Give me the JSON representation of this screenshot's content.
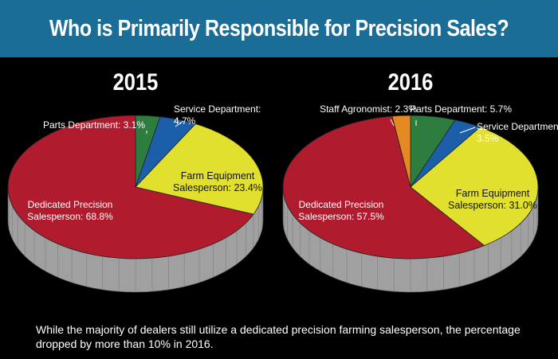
{
  "title": "Who is Primarily Responsible for Precision Sales?",
  "caption": "While the majority of dealers still utilize a dedicated precision farming salesperson, the percentage dropped by more than 10% in 2016.",
  "colors": {
    "title_bar": "#1a6d96",
    "background": "#000000",
    "dedicated": "#b01c2e",
    "farm_equipment": "#e2e02e",
    "parts": "#2e7d3e",
    "service": "#1b5faa",
    "agronomist": "#e58a22",
    "side": "#a0a0a0"
  },
  "chart_data": [
    {
      "type": "pie",
      "title": "2015",
      "slices": [
        {
          "key": "parts",
          "label_lines": [
            "Parts Department: 3.1%"
          ],
          "value": 3.1,
          "label_style": "outside"
        },
        {
          "key": "service",
          "label_lines": [
            "Service Department:",
            "4.7%"
          ],
          "value": 4.7,
          "label_style": "outside"
        },
        {
          "key": "farm_equipment",
          "label_lines": [
            "Farm Equipment",
            "Salesperson: 23.4%"
          ],
          "value": 23.4,
          "label_style": "inside-dark"
        },
        {
          "key": "dedicated",
          "label_lines": [
            "Dedicated Precision",
            "Salesperson: 68.8%"
          ],
          "value": 68.8,
          "label_style": "inside-light"
        }
      ]
    },
    {
      "type": "pie",
      "title": "2016",
      "slices": [
        {
          "key": "parts",
          "label_lines": [
            "Parts Department: 5.7%"
          ],
          "value": 5.7,
          "label_style": "outside"
        },
        {
          "key": "service",
          "label_lines": [
            "Service Department:",
            "3.5%"
          ],
          "value": 3.5,
          "label_style": "outside"
        },
        {
          "key": "farm_equipment",
          "label_lines": [
            "Farm Equipment",
            "Salesperson: 31.0%"
          ],
          "value": 31.0,
          "label_style": "inside-dark"
        },
        {
          "key": "dedicated",
          "label_lines": [
            "Dedicated Precision",
            "Salesperson: 57.5%"
          ],
          "value": 57.5,
          "label_style": "inside-light"
        },
        {
          "key": "agronomist",
          "label_lines": [
            "Staff Agronomist: 2.3%"
          ],
          "value": 2.3,
          "label_style": "outside"
        }
      ]
    }
  ]
}
